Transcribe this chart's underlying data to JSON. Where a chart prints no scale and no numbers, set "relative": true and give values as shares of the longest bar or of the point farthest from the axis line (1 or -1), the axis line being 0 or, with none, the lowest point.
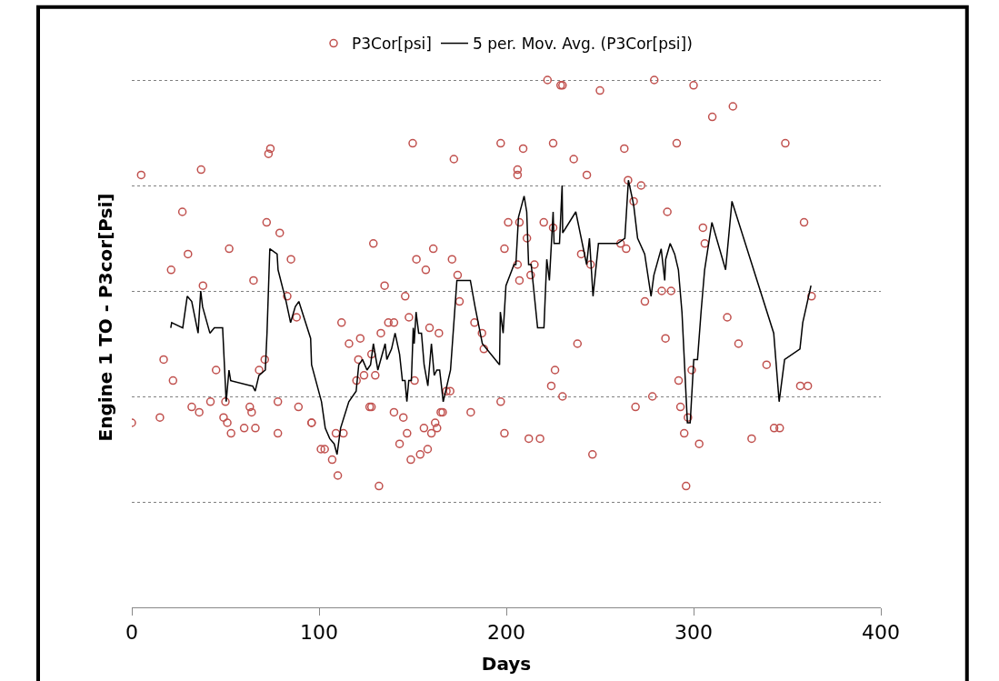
{
  "chart_data": {
    "type": "scatter",
    "xlabel": "Days",
    "ylabel": "Engine 1 TO - P3cor[Psi]",
    "relative": true,
    "xlim": [
      0,
      400
    ],
    "xticks": [
      0,
      100,
      200,
      300,
      400
    ],
    "grid": "y",
    "legend": "top",
    "series": [
      {
        "name": "P3Cor[psi]",
        "marker": "circle",
        "color": "#c0504d",
        "x": [
          0,
          5,
          15,
          17,
          21,
          22,
          27,
          30,
          32,
          36,
          37,
          38,
          42,
          45,
          49,
          50,
          51,
          52,
          53,
          60,
          63,
          64,
          65,
          66,
          68,
          71,
          72,
          73,
          74,
          78,
          78,
          79,
          83,
          85,
          88,
          89,
          96,
          96,
          101,
          103,
          107,
          109,
          110,
          112,
          113,
          116,
          120,
          121,
          122,
          124,
          127,
          128,
          129,
          130,
          132,
          133,
          135,
          128,
          137,
          140,
          140,
          143,
          145,
          146,
          147,
          148,
          149,
          150,
          151,
          152,
          154,
          156,
          157,
          158,
          159,
          160,
          161,
          162,
          163,
          164,
          165,
          166,
          168,
          170,
          171,
          172,
          174,
          175,
          181,
          183,
          187,
          188,
          197,
          197,
          199,
          199,
          201,
          206,
          206,
          206,
          207,
          207,
          209,
          211,
          212,
          213,
          215,
          218,
          220,
          222,
          224,
          225,
          225,
          226,
          229,
          230,
          230,
          236,
          238,
          240,
          243,
          245,
          246,
          250,
          261,
          263,
          264,
          265,
          268,
          269,
          272,
          274,
          278,
          279,
          283,
          285,
          286,
          288,
          291,
          292,
          293,
          295,
          296,
          297,
          299,
          300,
          303,
          305,
          306,
          310,
          318,
          321,
          324,
          331,
          339,
          343,
          346,
          349,
          357,
          359,
          361,
          363
        ],
        "values": [
          0.35,
          0.82,
          0.36,
          0.47,
          0.64,
          0.43,
          0.75,
          0.67,
          0.38,
          0.37,
          0.83,
          0.61,
          0.39,
          0.45,
          0.36,
          0.39,
          0.35,
          0.68,
          0.33,
          0.34,
          0.38,
          0.37,
          0.62,
          0.34,
          0.45,
          0.47,
          0.73,
          0.86,
          0.87,
          0.39,
          0.33,
          0.71,
          0.59,
          0.66,
          0.55,
          0.38,
          0.35,
          0.35,
          0.3,
          0.3,
          0.28,
          0.33,
          0.25,
          0.54,
          0.33,
          0.5,
          0.43,
          0.47,
          0.51,
          0.44,
          0.38,
          0.48,
          0.69,
          0.44,
          0.23,
          0.52,
          0.61,
          0.38,
          0.54,
          0.54,
          0.37,
          0.31,
          0.36,
          0.59,
          0.33,
          0.55,
          0.28,
          0.88,
          0.43,
          0.66,
          0.29,
          0.34,
          0.64,
          0.3,
          0.53,
          0.33,
          0.68,
          0.35,
          0.34,
          0.52,
          0.37,
          0.37,
          0.41,
          0.41,
          0.66,
          0.85,
          0.63,
          0.58,
          0.37,
          0.54,
          0.52,
          0.49,
          0.39,
          0.88,
          0.33,
          0.68,
          0.73,
          0.83,
          0.82,
          0.65,
          0.62,
          0.73,
          0.87,
          0.7,
          0.32,
          0.63,
          0.65,
          0.32,
          0.73,
          1.0,
          0.42,
          0.88,
          0.72,
          0.45,
          0.99,
          0.99,
          0.4,
          0.85,
          0.5,
          0.67,
          0.82,
          0.65,
          0.29,
          0.98,
          0.69,
          0.87,
          0.68,
          0.81,
          0.77,
          0.38,
          0.8,
          0.58,
          0.4,
          1.0,
          0.6,
          0.51,
          0.75,
          0.6,
          0.88,
          0.43,
          0.38,
          0.33,
          0.23,
          0.36,
          0.45,
          0.99,
          0.31,
          0.72,
          0.69,
          0.93,
          0.55,
          0.95,
          0.5,
          0.32,
          0.46,
          0.34,
          0.34,
          0.88,
          0.42,
          0.73,
          0.42,
          0.59
        ]
      },
      {
        "name": "5 per. Mov. Avg. (P3Cor[psi])",
        "type": "line",
        "marker": "none",
        "color": "#000000",
        "line_style": "solid",
        "x": [
          20.8,
          21.3,
          27.2,
          29.6,
          32.0,
          35.4,
          36.8,
          37.8,
          41.7,
          44.1,
          48.5,
          50.4,
          51.9,
          52.8,
          64.0,
          64.5,
          65.9,
          67.9,
          71.3,
          72.2,
          73.7,
          77.6,
          78.1,
          82.4,
          84.8,
          87.3,
          89.2,
          95.5,
          96.0,
          101.3,
          103.3,
          105.7,
          108.1,
          109.6,
          111.5,
          115.9,
          119.8,
          121.2,
          123.2,
          125.6,
          127.5,
          129.0,
          131.4,
          135.3,
          136.2,
          138.7,
          140.6,
          143.0,
          144.5,
          145.9,
          146.9,
          147.9,
          149.3,
          150.3,
          150.8,
          151.8,
          153.2,
          154.7,
          156.1,
          158.1,
          160.0,
          161.5,
          162.9,
          164.4,
          166.3,
          170.2,
          173.6,
          180.8,
          183.3,
          187.2,
          196.4,
          196.8,
          198.3,
          199.8,
          204.1,
          205.1,
          206.5,
          209.5,
          210.9,
          211.9,
          213.3,
          216.7,
          220.1,
          221.6,
          223.0,
          225.0,
          225.5,
          228.4,
          229.8,
          230.1,
          237.1,
          242.9,
          244.4,
          246.3,
          249.2,
          259.4,
          263.3,
          265.2,
          267.6,
          268.1,
          270.1,
          273.9,
          277.3,
          278.8,
          282.7,
          284.6,
          285.1,
          287.5,
          289.9,
          291.9,
          293.8,
          296.7,
          298.2,
          300.1,
          302.1,
          304.0,
          305.9,
          309.8,
          317.1,
          320.5,
          342.8,
          345.7,
          348.6,
          356.8,
          358.3,
          360.2,
          362.7
        ],
        "values": [
          0.53,
          0.54,
          0.53,
          0.59,
          0.58,
          0.52,
          0.6,
          0.57,
          0.52,
          0.53,
          0.53,
          0.39,
          0.45,
          0.43,
          0.42,
          0.42,
          0.41,
          0.44,
          0.45,
          0.52,
          0.68,
          0.67,
          0.64,
          0.58,
          0.54,
          0.57,
          0.58,
          0.51,
          0.46,
          0.39,
          0.34,
          0.32,
          0.31,
          0.29,
          0.34,
          0.39,
          0.41,
          0.46,
          0.47,
          0.45,
          0.46,
          0.5,
          0.45,
          0.5,
          0.47,
          0.49,
          0.52,
          0.48,
          0.43,
          0.43,
          0.39,
          0.43,
          0.43,
          0.53,
          0.5,
          0.56,
          0.52,
          0.52,
          0.46,
          0.42,
          0.5,
          0.44,
          0.45,
          0.45,
          0.39,
          0.45,
          0.62,
          0.62,
          0.57,
          0.5,
          0.46,
          0.56,
          0.52,
          0.61,
          0.65,
          0.65,
          0.74,
          0.78,
          0.75,
          0.65,
          0.65,
          0.53,
          0.53,
          0.66,
          0.62,
          0.75,
          0.69,
          0.69,
          0.8,
          0.71,
          0.75,
          0.65,
          0.7,
          0.59,
          0.69,
          0.69,
          0.7,
          0.81,
          0.77,
          0.76,
          0.7,
          0.67,
          0.59,
          0.63,
          0.68,
          0.62,
          0.66,
          0.69,
          0.67,
          0.64,
          0.56,
          0.35,
          0.35,
          0.47,
          0.47,
          0.56,
          0.64,
          0.73,
          0.64,
          0.77,
          0.52,
          0.39,
          0.47,
          0.49,
          0.54,
          0.57,
          0.61
        ]
      }
    ]
  }
}
